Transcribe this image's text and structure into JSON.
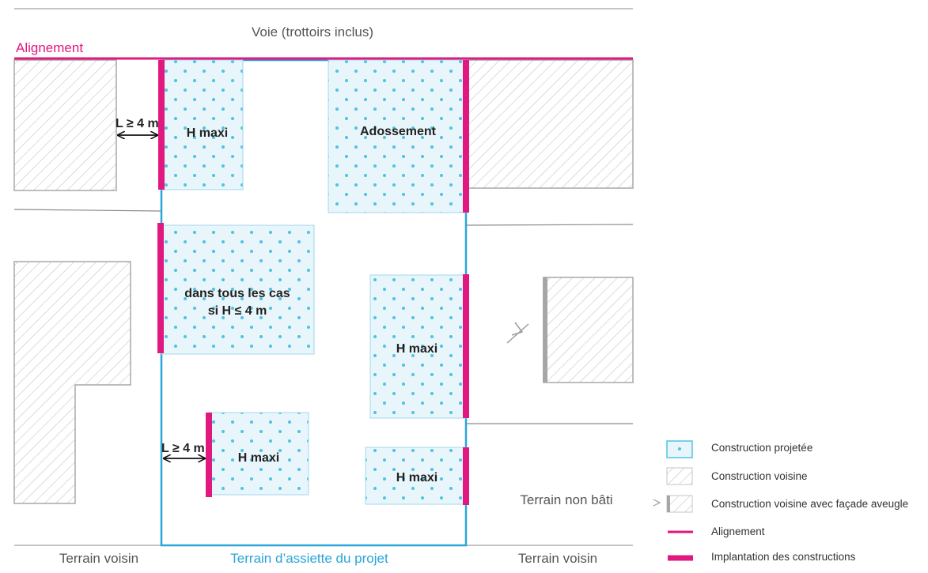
{
  "colors": {
    "magenta": "#e0187f",
    "blue": "#2aa6d8",
    "dot": "#4fc3e3",
    "fill": "#e8f6fb",
    "hatch": "#bdbdbd",
    "line": "#8a8a8a"
  },
  "labels": {
    "voie": "Voie (trottoirs inclus)",
    "alignement": "Alignement",
    "terrain_voisin_left": "Terrain voisin",
    "terrain_voisin_right": "Terrain voisin",
    "terrain_assiette": "Terrain d’assiette du projet",
    "terrain_non_bati": "Terrain non bâti"
  },
  "blocks": {
    "top_left": "H maxi",
    "adossement": "Adossement",
    "middle_line1": "dans tous les cas",
    "middle_line2": "si H ≤ 4 m",
    "right_middle": "H maxi",
    "bottom_left": "H maxi",
    "bottom_right": "H maxi"
  },
  "dimensions": {
    "top": "L ≥ 4 m",
    "bottom": "L ≥ 4 m"
  },
  "legend": [
    {
      "key": "construction-projetee",
      "label": "Construction projetée"
    },
    {
      "key": "construction-voisine",
      "label": "Construction voisine"
    },
    {
      "key": "construction-voisine-aveugle",
      "label": "Construction voisine avec façade aveugle"
    },
    {
      "key": "alignement",
      "label": "Alignement"
    },
    {
      "key": "implantation",
      "label": "Implantation des constructions"
    }
  ]
}
